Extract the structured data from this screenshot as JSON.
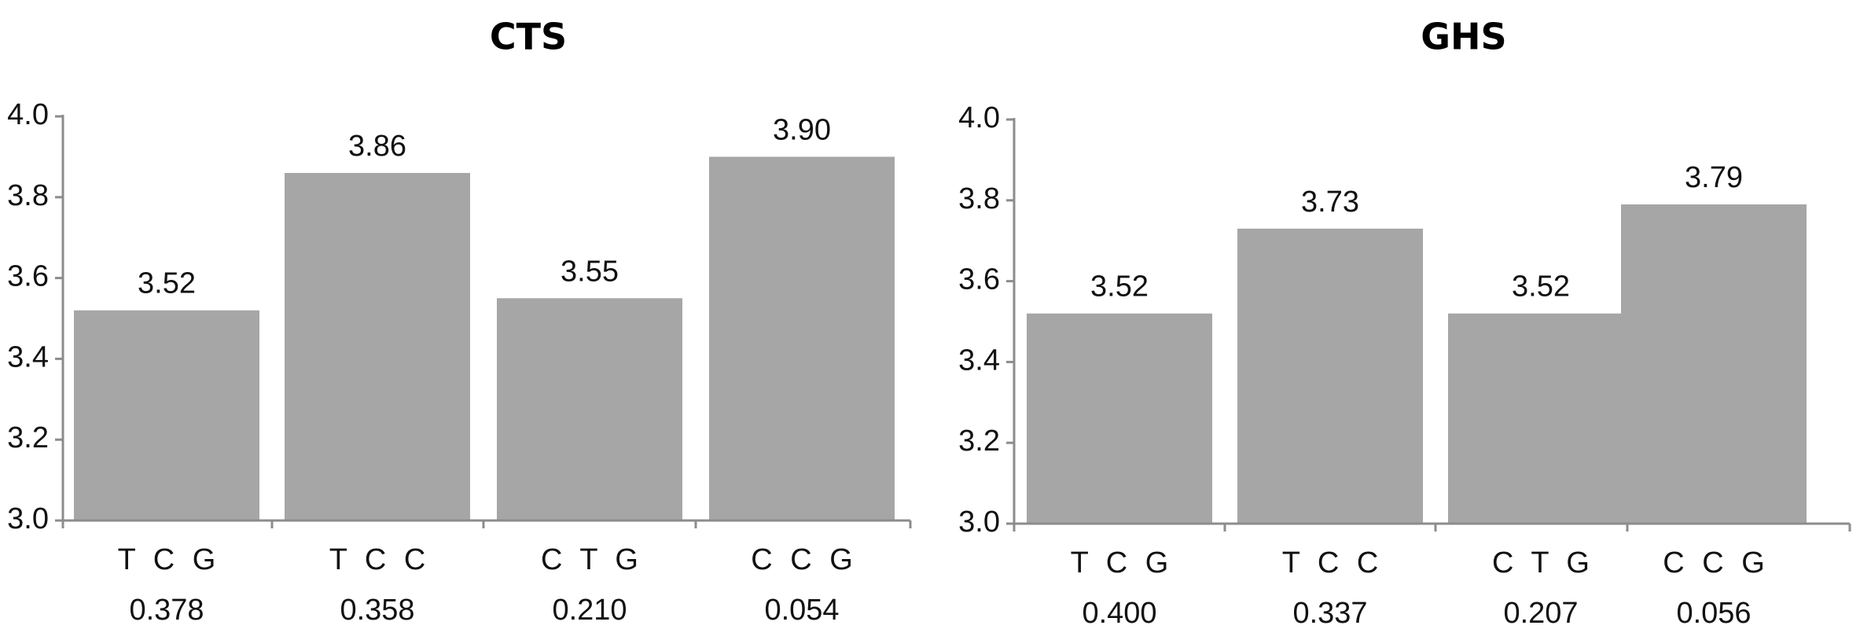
{
  "chart_data": [
    {
      "type": "bar",
      "title": "CTS",
      "categories": [
        "T C G",
        "T C C",
        "C T G",
        "C C G"
      ],
      "values": [
        3.52,
        3.86,
        3.55,
        3.9
      ],
      "value_labels": [
        "3.52",
        "3.86",
        "3.55",
        "3.90"
      ],
      "category_values": [
        "0.378",
        "0.358",
        "0.210",
        "0.054"
      ],
      "xlabel": "",
      "ylabel": "",
      "ylim": [
        3.0,
        4.0
      ],
      "yticks": [
        3.0,
        3.2,
        3.4,
        3.6,
        3.8,
        4.0
      ],
      "ytick_labels": [
        "3.0",
        "3.2",
        "3.4",
        "3.6",
        "3.8",
        "4.0"
      ],
      "bar_color": "#a6a6a6",
      "grid": false,
      "legend": "none"
    },
    {
      "type": "bar",
      "title": "GHS",
      "categories": [
        "T C G",
        "T C C",
        "C T G",
        "C C G"
      ],
      "values": [
        3.52,
        3.73,
        3.52,
        3.79
      ],
      "value_labels": [
        "3.52",
        "3.73",
        "3.52",
        "3.79"
      ],
      "category_values": [
        "0.400",
        "0.337",
        "0.207",
        "0.056"
      ],
      "xlabel": "",
      "ylabel": "",
      "ylim": [
        3.0,
        4.0
      ],
      "yticks": [
        3.0,
        3.2,
        3.4,
        3.6,
        3.8,
        4.0
      ],
      "ytick_labels": [
        "3.0",
        "3.2",
        "3.4",
        "3.6",
        "3.8",
        "4.0"
      ],
      "bar_color": "#a6a6a6",
      "grid": false,
      "legend": "none"
    }
  ]
}
